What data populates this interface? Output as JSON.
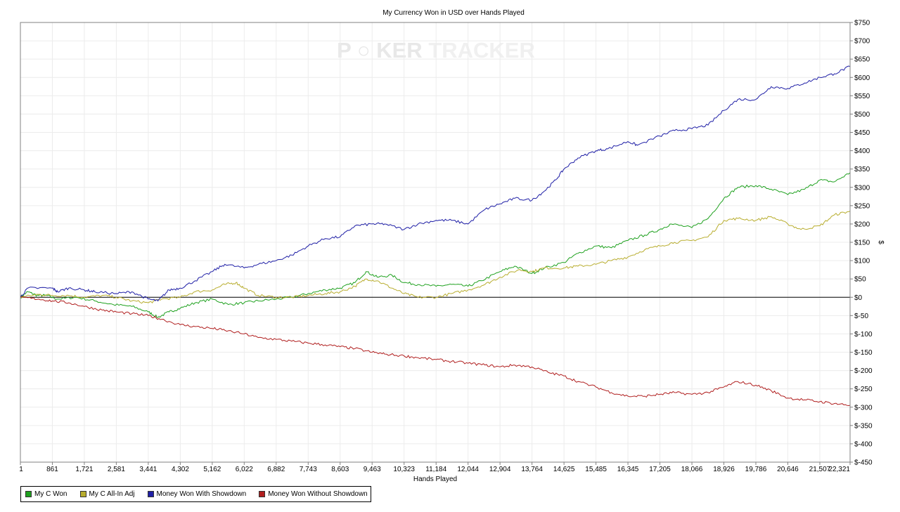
{
  "chart_data": {
    "type": "line",
    "title": "My Currency Won in USD over Hands Played",
    "xlabel": "Hands Played",
    "ylabel": "$",
    "watermark": {
      "left": "P",
      "mid": "KER",
      "right": "TRACKER"
    },
    "xlim": [
      1,
      22321
    ],
    "ylim": [
      -450,
      750
    ],
    "x_ticks": [
      1,
      861,
      1721,
      2581,
      3441,
      4302,
      5162,
      6022,
      6882,
      7743,
      8603,
      9463,
      10323,
      11184,
      12044,
      12904,
      13764,
      14625,
      15485,
      16345,
      17205,
      18066,
      18926,
      19786,
      20646,
      21507,
      22321
    ],
    "x_tick_labels": [
      "1",
      "861",
      "1,721",
      "2,581",
      "3,441",
      "4,302",
      "5,162",
      "6,022",
      "6,882",
      "7,743",
      "8,603",
      "9,463",
      "10,323",
      "11,184",
      "12,044",
      "12,904",
      "13,764",
      "14,625",
      "15,485",
      "16,345",
      "17,205",
      "18,066",
      "18,926",
      "19,786",
      "20,646",
      "21,507",
      "22,321"
    ],
    "y_ticks": [
      750,
      700,
      650,
      600,
      550,
      500,
      450,
      400,
      350,
      300,
      250,
      200,
      150,
      100,
      50,
      0,
      -50,
      -100,
      -150,
      -200,
      -250,
      -300,
      -350,
      -400,
      -450
    ],
    "y_tick_labels": [
      "$750",
      "$700",
      "$650",
      "$600",
      "$550",
      "$500",
      "$450",
      "$400",
      "$350",
      "$300",
      "$250",
      "$200",
      "$150",
      "$100",
      "$50",
      "$0",
      "$-50",
      "$-100",
      "$-150",
      "$-200",
      "$-250",
      "$-300",
      "$-350",
      "$-400",
      "$-450"
    ],
    "grid": true,
    "legend_position": "bottom-left",
    "series": [
      {
        "name": "My C Won",
        "color": "#1fa11f",
        "points": [
          [
            1,
            0
          ],
          [
            200,
            15
          ],
          [
            450,
            5
          ],
          [
            700,
            5
          ],
          [
            1000,
            -5
          ],
          [
            1500,
            0
          ],
          [
            2000,
            -10
          ],
          [
            2500,
            -20
          ],
          [
            3000,
            -25
          ],
          [
            3441,
            -40
          ],
          [
            3700,
            -55
          ],
          [
            4000,
            -40
          ],
          [
            4302,
            -30
          ],
          [
            4700,
            -15
          ],
          [
            5162,
            -5
          ],
          [
            5600,
            -20
          ],
          [
            6022,
            -15
          ],
          [
            6400,
            -10
          ],
          [
            6882,
            -5
          ],
          [
            7300,
            0
          ],
          [
            7743,
            10
          ],
          [
            8200,
            20
          ],
          [
            8603,
            25
          ],
          [
            9000,
            40
          ],
          [
            9300,
            70
          ],
          [
            9600,
            55
          ],
          [
            10000,
            60
          ],
          [
            10323,
            40
          ],
          [
            10700,
            35
          ],
          [
            11184,
            30
          ],
          [
            11600,
            35
          ],
          [
            12044,
            30
          ],
          [
            12400,
            45
          ],
          [
            12904,
            70
          ],
          [
            13300,
            85
          ],
          [
            13764,
            65
          ],
          [
            14100,
            80
          ],
          [
            14625,
            95
          ],
          [
            15000,
            120
          ],
          [
            15485,
            140
          ],
          [
            15900,
            135
          ],
          [
            16345,
            155
          ],
          [
            16800,
            170
          ],
          [
            17205,
            185
          ],
          [
            17500,
            200
          ],
          [
            18066,
            190
          ],
          [
            18500,
            215
          ],
          [
            18926,
            270
          ],
          [
            19300,
            300
          ],
          [
            19786,
            305
          ],
          [
            20200,
            295
          ],
          [
            20646,
            280
          ],
          [
            21100,
            295
          ],
          [
            21507,
            320
          ],
          [
            21900,
            315
          ],
          [
            22321,
            340
          ]
        ]
      },
      {
        "name": "My C All-In Adj",
        "color": "#b8ad2e",
        "points": [
          [
            1,
            0
          ],
          [
            500,
            8
          ],
          [
            861,
            5
          ],
          [
            1300,
            5
          ],
          [
            1721,
            0
          ],
          [
            2200,
            5
          ],
          [
            2581,
            0
          ],
          [
            3000,
            -10
          ],
          [
            3441,
            -15
          ],
          [
            3800,
            -5
          ],
          [
            4302,
            0
          ],
          [
            4700,
            15
          ],
          [
            5162,
            20
          ],
          [
            5500,
            35
          ],
          [
            5800,
            40
          ],
          [
            6022,
            25
          ],
          [
            6400,
            5
          ],
          [
            6882,
            0
          ],
          [
            7300,
            0
          ],
          [
            7743,
            5
          ],
          [
            8200,
            10
          ],
          [
            8603,
            15
          ],
          [
            9000,
            30
          ],
          [
            9300,
            50
          ],
          [
            9600,
            45
          ],
          [
            10000,
            25
          ],
          [
            10323,
            10
          ],
          [
            10700,
            0
          ],
          [
            11184,
            0
          ],
          [
            11600,
            10
          ],
          [
            12044,
            20
          ],
          [
            12500,
            35
          ],
          [
            12904,
            55
          ],
          [
            13400,
            75
          ],
          [
            13764,
            70
          ],
          [
            14100,
            80
          ],
          [
            14625,
            80
          ],
          [
            15000,
            85
          ],
          [
            15485,
            90
          ],
          [
            15900,
            100
          ],
          [
            16345,
            110
          ],
          [
            16800,
            130
          ],
          [
            17205,
            140
          ],
          [
            17600,
            150
          ],
          [
            18066,
            155
          ],
          [
            18500,
            165
          ],
          [
            18926,
            210
          ],
          [
            19300,
            215
          ],
          [
            19786,
            210
          ],
          [
            20200,
            220
          ],
          [
            20646,
            200
          ],
          [
            21000,
            185
          ],
          [
            21507,
            195
          ],
          [
            21900,
            225
          ],
          [
            22321,
            235
          ]
        ]
      },
      {
        "name": "Money Won With Showdown",
        "color": "#1f1fa6",
        "points": [
          [
            1,
            0
          ],
          [
            200,
            25
          ],
          [
            861,
            25
          ],
          [
            1000,
            15
          ],
          [
            1300,
            25
          ],
          [
            1721,
            20
          ],
          [
            2000,
            15
          ],
          [
            2581,
            10
          ],
          [
            3000,
            15
          ],
          [
            3441,
            -5
          ],
          [
            3700,
            -10
          ],
          [
            4000,
            20
          ],
          [
            4302,
            25
          ],
          [
            4700,
            45
          ],
          [
            5162,
            70
          ],
          [
            5500,
            90
          ],
          [
            6022,
            80
          ],
          [
            6400,
            90
          ],
          [
            6882,
            100
          ],
          [
            7300,
            115
          ],
          [
            7743,
            140
          ],
          [
            8200,
            160
          ],
          [
            8603,
            165
          ],
          [
            9000,
            195
          ],
          [
            9463,
            200
          ],
          [
            9800,
            200
          ],
          [
            10323,
            185
          ],
          [
            10700,
            200
          ],
          [
            11184,
            210
          ],
          [
            11600,
            210
          ],
          [
            12044,
            200
          ],
          [
            12500,
            240
          ],
          [
            12904,
            255
          ],
          [
            13300,
            270
          ],
          [
            13764,
            265
          ],
          [
            14100,
            290
          ],
          [
            14400,
            320
          ],
          [
            14625,
            350
          ],
          [
            15000,
            380
          ],
          [
            15485,
            400
          ],
          [
            15800,
            405
          ],
          [
            16345,
            425
          ],
          [
            16600,
            415
          ],
          [
            17205,
            440
          ],
          [
            17600,
            455
          ],
          [
            18066,
            460
          ],
          [
            18500,
            470
          ],
          [
            18926,
            510
          ],
          [
            19300,
            540
          ],
          [
            19786,
            540
          ],
          [
            20200,
            575
          ],
          [
            20646,
            570
          ],
          [
            21100,
            585
          ],
          [
            21507,
            600
          ],
          [
            21900,
            610
          ],
          [
            22321,
            630
          ]
        ]
      },
      {
        "name": "Money Won Without Showdown",
        "color": "#b01e1e",
        "points": [
          [
            1,
            0
          ],
          [
            500,
            -5
          ],
          [
            861,
            -10
          ],
          [
            1300,
            -15
          ],
          [
            1721,
            -25
          ],
          [
            2200,
            -35
          ],
          [
            2581,
            -40
          ],
          [
            3000,
            -45
          ],
          [
            3441,
            -50
          ],
          [
            3800,
            -60
          ],
          [
            4302,
            -75
          ],
          [
            4700,
            -80
          ],
          [
            5162,
            -85
          ],
          [
            5500,
            -90
          ],
          [
            6022,
            -100
          ],
          [
            6400,
            -110
          ],
          [
            6882,
            -115
          ],
          [
            7300,
            -120
          ],
          [
            7743,
            -125
          ],
          [
            8200,
            -130
          ],
          [
            8603,
            -135
          ],
          [
            9000,
            -140
          ],
          [
            9463,
            -150
          ],
          [
            9800,
            -155
          ],
          [
            10323,
            -160
          ],
          [
            10700,
            -165
          ],
          [
            11184,
            -170
          ],
          [
            11600,
            -175
          ],
          [
            12044,
            -180
          ],
          [
            12500,
            -185
          ],
          [
            12904,
            -190
          ],
          [
            13300,
            -185
          ],
          [
            13764,
            -190
          ],
          [
            14200,
            -205
          ],
          [
            14625,
            -215
          ],
          [
            15000,
            -230
          ],
          [
            15485,
            -245
          ],
          [
            15900,
            -260
          ],
          [
            16345,
            -270
          ],
          [
            16800,
            -270
          ],
          [
            17205,
            -265
          ],
          [
            17600,
            -260
          ],
          [
            18066,
            -265
          ],
          [
            18500,
            -260
          ],
          [
            18926,
            -245
          ],
          [
            19300,
            -230
          ],
          [
            19786,
            -240
          ],
          [
            20200,
            -255
          ],
          [
            20646,
            -275
          ],
          [
            21100,
            -280
          ],
          [
            21507,
            -285
          ],
          [
            21900,
            -290
          ],
          [
            22321,
            -295
          ]
        ]
      }
    ]
  }
}
